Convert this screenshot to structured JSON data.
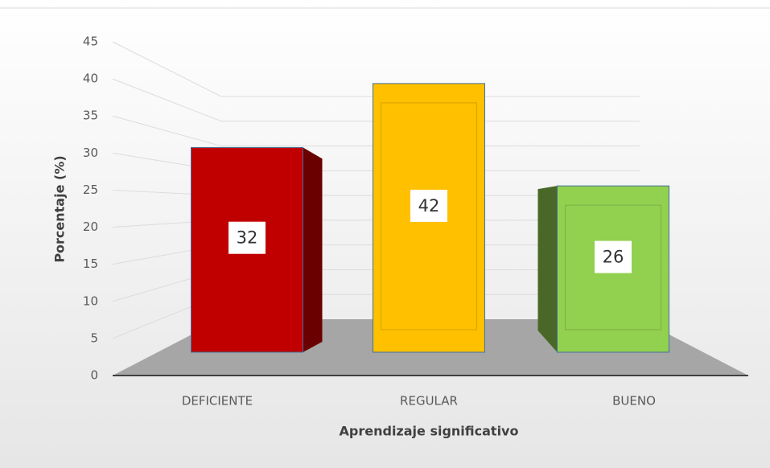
{
  "chart_data": {
    "type": "bar3d",
    "y_axis_label": "Porcentaje (%)",
    "x_axis_label": "Aprendizaje significativo",
    "categories": [
      "DEFICIENTE",
      "REGULAR",
      "BUENO"
    ],
    "values": [
      32,
      42,
      26
    ],
    "colors": [
      "#c00000",
      "#ffc000",
      "#92d050"
    ],
    "ylim": [
      0,
      45
    ],
    "yticks": [
      0,
      5,
      10,
      15,
      20,
      25,
      30,
      35,
      40,
      45
    ],
    "grid": true
  }
}
